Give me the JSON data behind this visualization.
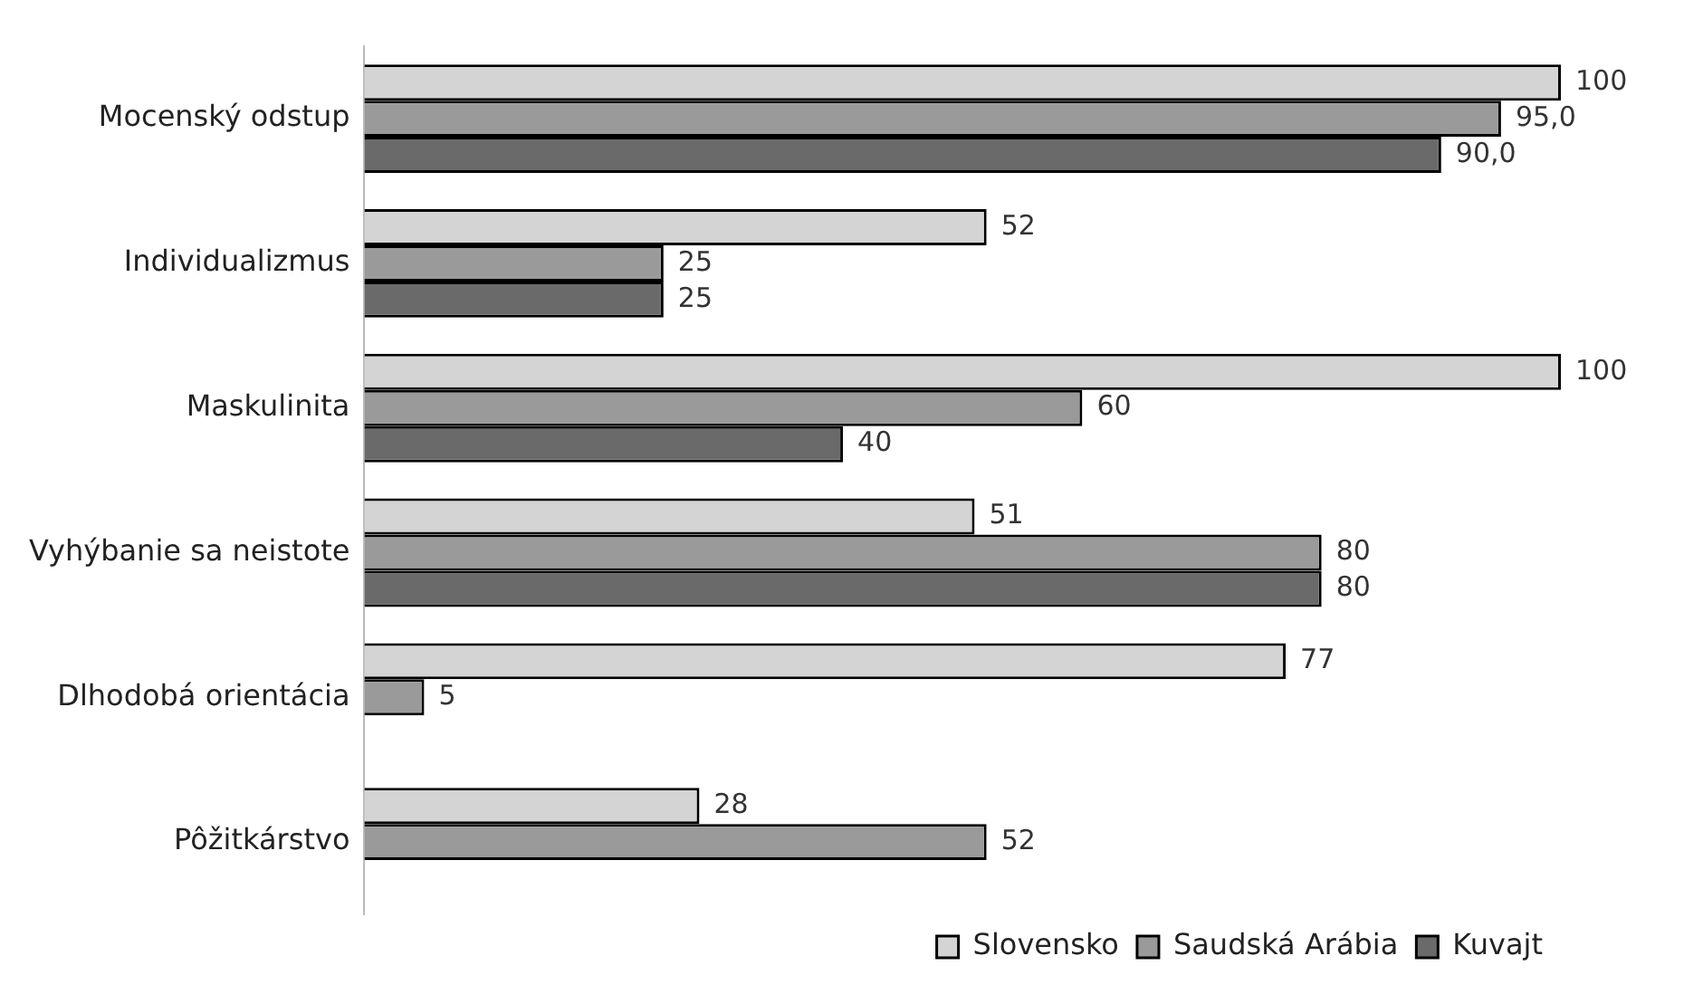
{
  "chart_data": {
    "type": "bar",
    "orientation": "horizontal",
    "categories": [
      "Mocenský odstup",
      "Individualizmus",
      "Maskulinita",
      "Vyhýbanie sa neistote",
      "Dlhodobá orientácia",
      "Pôžitkárstvo"
    ],
    "series": [
      {
        "name": "Slovensko",
        "color": "#d4d4d4",
        "values": [
          100,
          52,
          100,
          51,
          77,
          28
        ],
        "value_labels": [
          "100",
          "52",
          "100",
          "51",
          "77",
          "28"
        ]
      },
      {
        "name": "Saudská Arábia",
        "color": "#9a9a9a",
        "values": [
          95,
          25,
          60,
          80,
          5,
          52
        ],
        "value_labels": [
          "95,0",
          "25",
          "60",
          "80",
          "5",
          "52"
        ]
      },
      {
        "name": "Kuvajt",
        "color": "#6a6a6a",
        "values": [
          90,
          25,
          40,
          80,
          null,
          null
        ],
        "value_labels": [
          "90,0",
          "25",
          "40",
          "80",
          null,
          null
        ]
      }
    ],
    "xlim": [
      0,
      100
    ],
    "legend": "bottom"
  }
}
